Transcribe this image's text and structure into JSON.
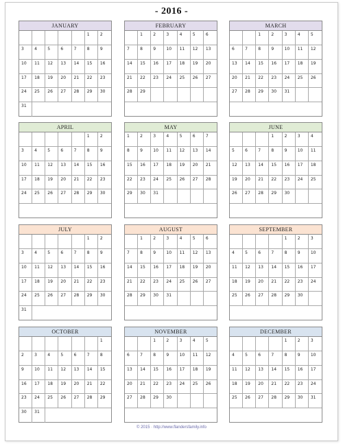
{
  "header": {
    "title": "- 2016 -"
  },
  "months": [
    {
      "name": "JANUARY",
      "color": "#e2dcec",
      "start": 5,
      "days": 31,
      "rows": 6
    },
    {
      "name": "FEBRUARY",
      "color": "#e2dcec",
      "start": 1,
      "days": 29,
      "rows": 5
    },
    {
      "name": "MARCH",
      "color": "#e2dcec",
      "start": 2,
      "days": 31,
      "rows": 5
    },
    {
      "name": "APRIL",
      "color": "#e0ecd5",
      "start": 5,
      "days": 30,
      "rows": 5
    },
    {
      "name": "MAY",
      "color": "#e0ecd5",
      "start": 0,
      "days": 31,
      "rows": 5
    },
    {
      "name": "JUNE",
      "color": "#e0ecd5",
      "start": 3,
      "days": 30,
      "rows": 5
    },
    {
      "name": "JULY",
      "color": "#fbe3d2",
      "start": 5,
      "days": 31,
      "rows": 6
    },
    {
      "name": "AUGUST",
      "color": "#fbe3d2",
      "start": 1,
      "days": 31,
      "rows": 5
    },
    {
      "name": "SEPTEMBER",
      "color": "#fbe3d2",
      "start": 4,
      "days": 30,
      "rows": 5
    },
    {
      "name": "OCTOBER",
      "color": "#d8e3ef",
      "start": 6,
      "days": 31,
      "rows": 6
    },
    {
      "name": "NOVEMBER",
      "color": "#d8e3ef",
      "start": 2,
      "days": 30,
      "rows": 5
    },
    {
      "name": "DECEMBER",
      "color": "#d8e3ef",
      "start": 4,
      "days": 31,
      "rows": 5
    }
  ],
  "footer": {
    "text": "© 2015 · http://www.flandersfamily.info"
  }
}
